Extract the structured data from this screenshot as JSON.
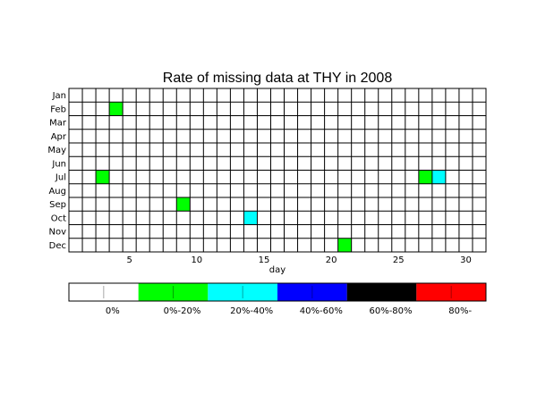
{
  "chart_data": {
    "type": "heatmap",
    "title": "Rate of missing data at THY in 2008",
    "xlabel": "day",
    "ylabel": "",
    "x_range": [
      1,
      31
    ],
    "x_ticks": [
      5,
      10,
      15,
      20,
      25,
      30
    ],
    "months": [
      "Jan",
      "Feb",
      "Mar",
      "Apr",
      "May",
      "Jun",
      "Jul",
      "Aug",
      "Sep",
      "Oct",
      "Nov",
      "Dec"
    ],
    "grid": true,
    "legend_position": "bottom",
    "legend": [
      {
        "label": "0%",
        "color": "#ffffff"
      },
      {
        "label": "0%-20%",
        "color": "#00ff00"
      },
      {
        "label": "20%-40%",
        "color": "#00ffff"
      },
      {
        "label": "40%-60%",
        "color": "#0000ff"
      },
      {
        "label": "60%-80%",
        "color": "#000000"
      },
      {
        "label": "80%-",
        "color": "#ff0000"
      }
    ],
    "cells": [
      {
        "month": "Feb",
        "day": 4,
        "category": "0%-20%"
      },
      {
        "month": "Jul",
        "day": 3,
        "category": "0%-20%"
      },
      {
        "month": "Jul",
        "day": 27,
        "category": "0%-20%"
      },
      {
        "month": "Jul",
        "day": 28,
        "category": "20%-40%"
      },
      {
        "month": "Sep",
        "day": 9,
        "category": "0%-20%"
      },
      {
        "month": "Oct",
        "day": 14,
        "category": "20%-40%"
      },
      {
        "month": "Dec",
        "day": 21,
        "category": "0%-20%"
      }
    ]
  }
}
